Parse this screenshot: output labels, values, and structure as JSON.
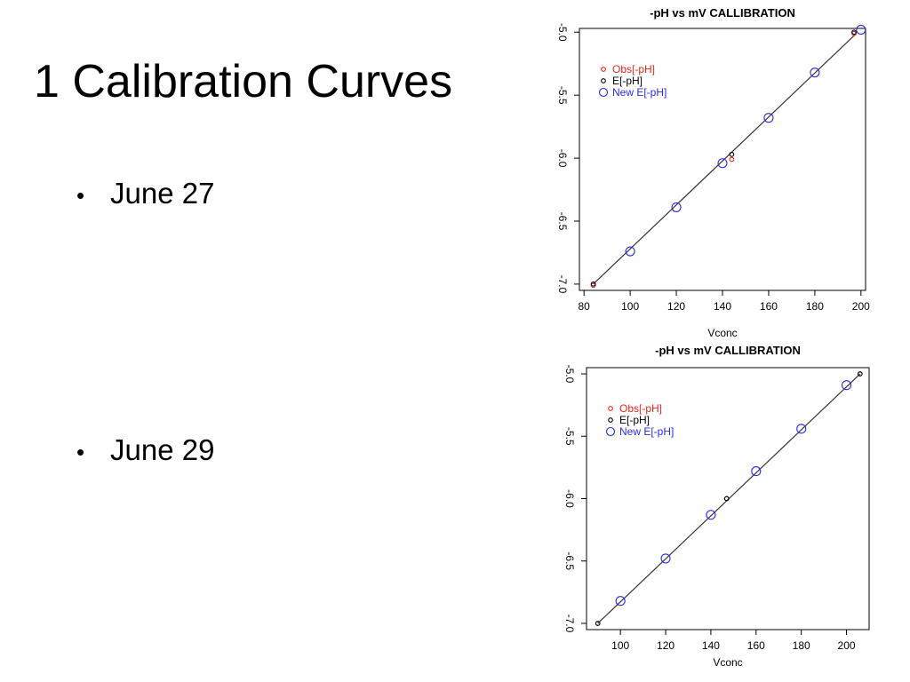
{
  "slide": {
    "title": "1 Calibration Curves",
    "bullet_char": "•",
    "bullets": [
      "June 27",
      "June 29"
    ]
  },
  "chart_data": [
    {
      "type": "scatter",
      "title": "-pH vs mV CALLIBRATION",
      "xlabel": "Vconc",
      "ylabel": "",
      "xlim": [
        78,
        202
      ],
      "ylim": [
        -7.05,
        -4.97
      ],
      "xticks": [
        80,
        100,
        120,
        140,
        160,
        180,
        200
      ],
      "yticks": [
        -7.0,
        -6.5,
        -6.0,
        -5.5,
        -5.0
      ],
      "xtick_labels": [
        "80",
        "100",
        "120",
        "140",
        "160",
        "180",
        "200"
      ],
      "ytick_labels": [
        "-7.0",
        "-6.5",
        "-6.0",
        "-5.5",
        "-5.0"
      ],
      "grid": false,
      "legend": "top-left",
      "fit_line": {
        "x": [
          84,
          198
        ],
        "y": [
          -7.0,
          -5.01
        ]
      },
      "series": [
        {
          "name": "Obs[-pH]",
          "color": "#e8261c",
          "marker": "small-circle",
          "x": [
            84,
            144,
            197
          ],
          "y": [
            -7.01,
            -6.01,
            -5.01
          ]
        },
        {
          "name": "E[-pH]",
          "color": "#000000",
          "marker": "small-circle",
          "x": [
            84,
            144,
            197
          ],
          "y": [
            -7.0,
            -5.97,
            -5.0
          ]
        },
        {
          "name": "New E[-pH]",
          "color": "#2a2ae8",
          "marker": "circle",
          "x": [
            100,
            120,
            140,
            160,
            180,
            200
          ],
          "y": [
            -6.74,
            -6.39,
            -6.04,
            -5.68,
            -5.32,
            -4.98
          ]
        }
      ]
    },
    {
      "type": "scatter",
      "title": "-pH vs mV CALLIBRATION",
      "xlabel": "Vconc",
      "ylabel": "",
      "xlim": [
        85,
        210
      ],
      "ylim": [
        -7.05,
        -4.95
      ],
      "xticks": [
        100,
        120,
        140,
        160,
        180,
        200
      ],
      "yticks": [
        -7.0,
        -6.5,
        -6.0,
        -5.5,
        -5.0
      ],
      "xtick_labels": [
        "100",
        "120",
        "140",
        "160",
        "180",
        "200"
      ],
      "ytick_labels": [
        "-7.0",
        "-6.5",
        "-6.0",
        "-5.5",
        "-5.0"
      ],
      "grid": false,
      "legend": "top-left",
      "fit_line": {
        "x": [
          90,
          206
        ],
        "y": [
          -7.0,
          -5.0
        ]
      },
      "series": [
        {
          "name": "Obs[-pH]",
          "color": "#e8261c",
          "marker": "small-circle",
          "x": [
            90,
            147,
            206
          ],
          "y": [
            -7.0,
            -6.0,
            -5.0
          ]
        },
        {
          "name": "E[-pH]",
          "color": "#000000",
          "marker": "small-circle",
          "x": [
            90,
            147,
            206
          ],
          "y": [
            -7.0,
            -6.0,
            -5.0
          ]
        },
        {
          "name": "New E[-pH]",
          "color": "#2a2ae8",
          "marker": "circle",
          "x": [
            100,
            120,
            140,
            160,
            180,
            200
          ],
          "y": [
            -6.82,
            -6.48,
            -6.13,
            -5.78,
            -5.44,
            -5.09
          ]
        }
      ]
    }
  ]
}
